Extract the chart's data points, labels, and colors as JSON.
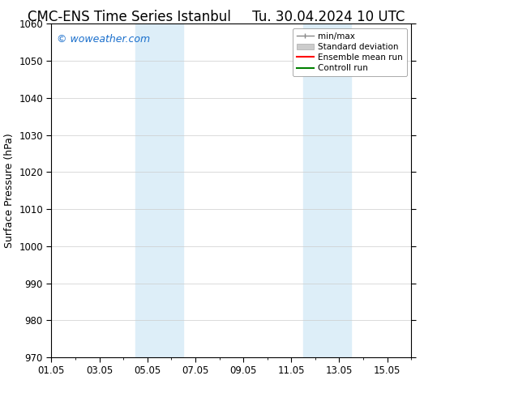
{
  "title_left": "CMC-ENS Time Series Istanbul",
  "title_right": "Tu. 30.04.2024 10 UTC",
  "ylabel": "Surface Pressure (hPa)",
  "ylim": [
    970,
    1060
  ],
  "yticks": [
    970,
    980,
    990,
    1000,
    1010,
    1020,
    1030,
    1040,
    1050,
    1060
  ],
  "xlim": [
    0,
    15
  ],
  "xtick_labels": [
    "01.05",
    "03.05",
    "05.05",
    "07.05",
    "09.05",
    "11.05",
    "13.05",
    "15.05"
  ],
  "xtick_positions": [
    0,
    2,
    4,
    6,
    8,
    10,
    12,
    14
  ],
  "shaded_regions": [
    {
      "x_start": 3.5,
      "x_end": 5.5,
      "color": "#ddeef8"
    },
    {
      "x_start": 10.5,
      "x_end": 12.5,
      "color": "#ddeef8"
    }
  ],
  "watermark_text": "© woweather.com",
  "watermark_color": "#1a6fcc",
  "background_color": "#ffffff",
  "plot_bg_color": "#ffffff",
  "grid_color": "#cccccc",
  "legend_items": [
    {
      "label": "min/max",
      "color": "#aaaaaa",
      "lw": 1.5
    },
    {
      "label": "Standard deviation",
      "color": "#cccccc",
      "lw": 6
    },
    {
      "label": "Ensemble mean run",
      "color": "#ff0000",
      "lw": 1.5
    },
    {
      "label": "Controll run",
      "color": "#008000",
      "lw": 1.5
    }
  ],
  "title_fontsize": 12,
  "tick_label_fontsize": 8.5,
  "ylabel_fontsize": 9,
  "legend_fontsize": 7.5,
  "watermark_fontsize": 9
}
